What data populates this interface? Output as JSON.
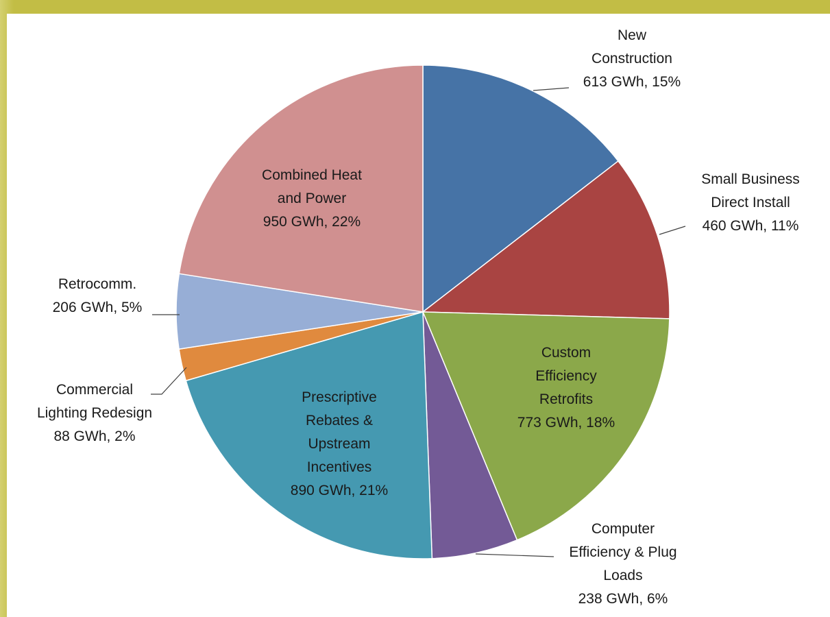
{
  "chart_data": {
    "type": "pie",
    "unit": "GWh",
    "slices": [
      {
        "label_lines": [
          "New",
          "Construction",
          "613 GWh, 15%"
        ],
        "value": 613,
        "percent": 15,
        "color": "#4673a6"
      },
      {
        "label_lines": [
          "Small Business",
          "Direct Install",
          "460 GWh, 11%"
        ],
        "value": 460,
        "percent": 11,
        "color": "#a94442"
      },
      {
        "label_lines": [
          "Custom",
          "Efficiency",
          "Retrofits",
          "773  GWh, 18%"
        ],
        "value": 773,
        "percent": 18,
        "color": "#8ba84a"
      },
      {
        "label_lines": [
          "Computer",
          "Efficiency & Plug",
          "Loads",
          "238 GWh, 6%"
        ],
        "value": 238,
        "percent": 6,
        "color": "#735a96"
      },
      {
        "label_lines": [
          "Prescriptive",
          "Rebates &",
          "Upstream",
          "Incentives",
          "890 GWh, 21%"
        ],
        "value": 890,
        "percent": 21,
        "color": "#4599b1"
      },
      {
        "label_lines": [
          "Commercial",
          "Lighting Redesign",
          "88 GWh, 2%"
        ],
        "value": 88,
        "percent": 2,
        "color": "#e08a3e"
      },
      {
        "label_lines": [
          "Retrocomm.",
          "206 GWh, 5%"
        ],
        "value": 206,
        "percent": 5,
        "color": "#97aed6"
      },
      {
        "label_lines": [
          "Combined Heat",
          "and Power",
          "950 GWh, 22%"
        ],
        "value": 950,
        "percent": 22,
        "color": "#d09090"
      }
    ]
  }
}
